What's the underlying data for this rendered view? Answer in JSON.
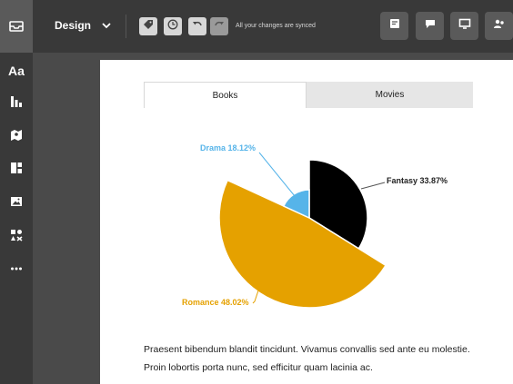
{
  "toolbar": {
    "doc_title": "Design",
    "sync_status": "All your changes are synced"
  },
  "sidebar": {
    "text_tool_label": "Aa"
  },
  "tabs": [
    {
      "label": "Books",
      "active": true
    },
    {
      "label": "Movies",
      "active": false
    }
  ],
  "chart_data": {
    "type": "pie",
    "slices": [
      {
        "label": "Fantasy 33.87%",
        "value": 33.87,
        "color": "#000000"
      },
      {
        "label": "Romance 48.02%",
        "value": 48.02,
        "color": "#e5a100"
      },
      {
        "label": "Drama 18.12%",
        "value": 18.12,
        "color": "#56b4e9"
      }
    ]
  },
  "paragraph": "Praesent bibendum blandit tincidunt. Vivamus convallis sed ante eu molestie. Proin lobortis porta nunc, sed efficitur quam lacinia ac."
}
